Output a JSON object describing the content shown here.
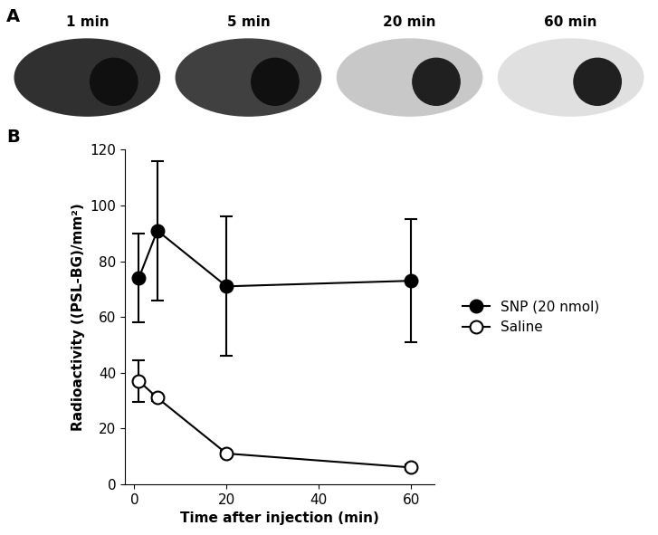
{
  "panels": {
    "labels": [
      "A",
      "B"
    ]
  },
  "images": {
    "labels": [
      "1 min",
      "5 min",
      "20 min",
      "60 min"
    ]
  },
  "chart_data": {
    "type": "line",
    "x_label": "Time after injection (min)",
    "y_label": "Radioactivity ((PSL-BG)/mm²)",
    "x": [
      1,
      5,
      20,
      60
    ],
    "series": [
      {
        "name": "SNP (20 nmol)",
        "color": "#000000",
        "marker": "filled_circle",
        "line_style": "solid",
        "values": [
          74,
          91,
          71,
          73
        ],
        "errors": [
          16,
          25,
          25,
          22
        ]
      },
      {
        "name": "Saline",
        "color": "#000000",
        "marker": "open_circle",
        "line_style": "solid",
        "values": [
          37,
          31,
          11,
          6
        ],
        "errors": [
          7.5,
          1,
          1,
          1
        ]
      }
    ],
    "xlim": [
      -2,
      65
    ],
    "xticks": [
      0,
      20,
      40,
      60
    ],
    "ylim": [
      0,
      120
    ],
    "yticks": [
      0,
      20,
      40,
      60,
      80,
      100,
      120
    ],
    "grid": false,
    "legend": "right"
  }
}
